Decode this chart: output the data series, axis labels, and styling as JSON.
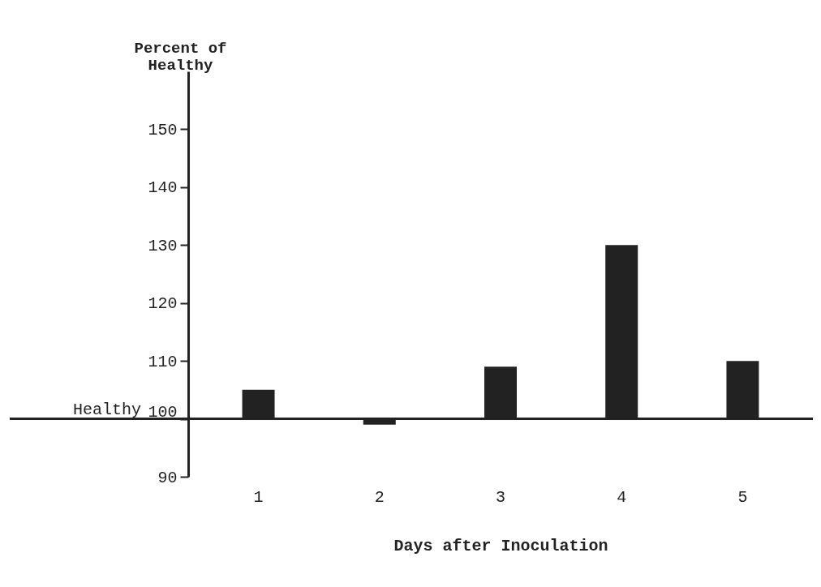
{
  "chart_data": {
    "type": "bar",
    "xlabel": "Days after Inoculation",
    "ylabel": "Percent of Healthy",
    "categories": [
      "1",
      "2",
      "3",
      "4",
      "5"
    ],
    "base": [
      100,
      100,
      100,
      100,
      100
    ],
    "values": [
      5,
      -1,
      9,
      30,
      10
    ],
    "color": "#222222",
    "ylim": [
      90,
      160
    ],
    "yticks": [
      90,
      100,
      110,
      120,
      130,
      140,
      150
    ],
    "ref_lines": [
      {
        "axis": "y",
        "value": 100,
        "label": "Healthy"
      }
    ],
    "grid": false
  }
}
